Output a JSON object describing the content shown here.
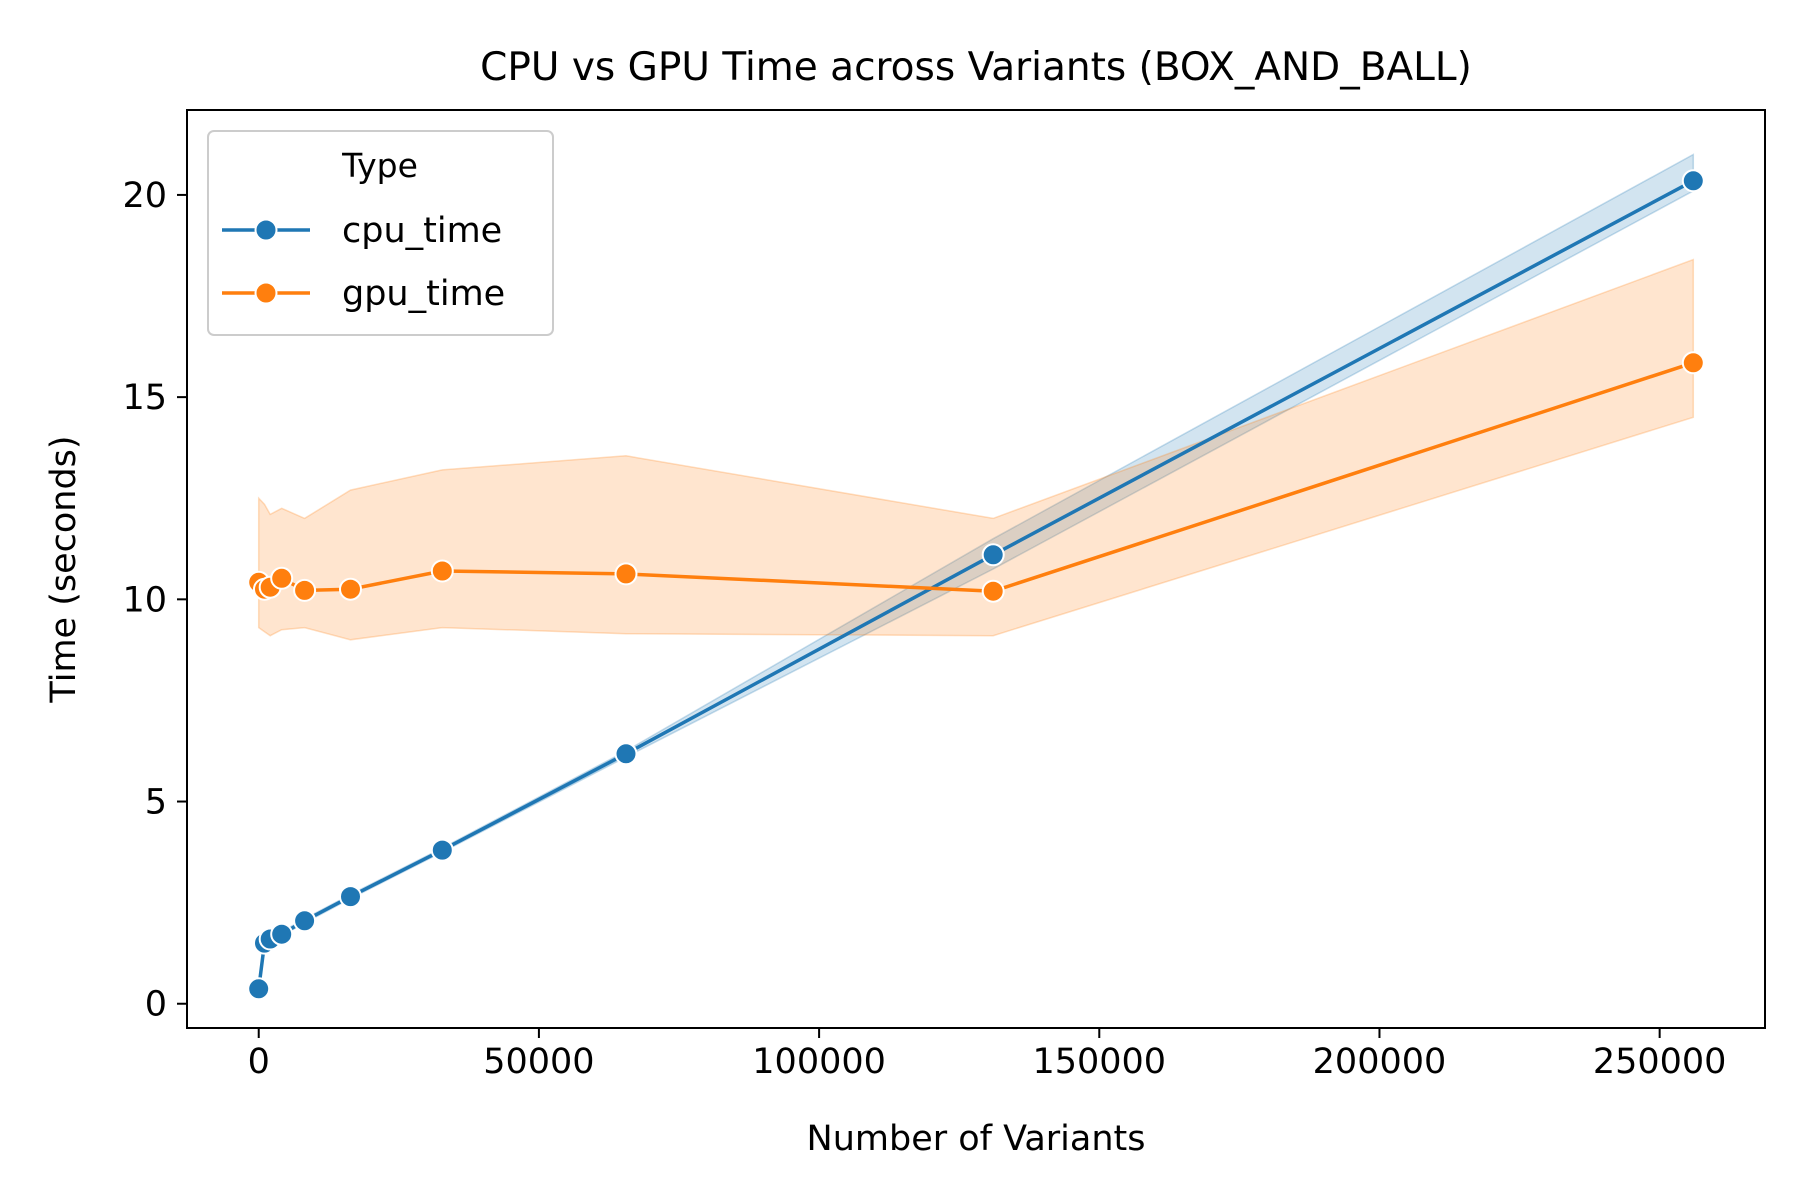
{
  "chart_data": {
    "type": "line",
    "title": "CPU vs GPU Time across Variants (BOX_AND_BALL)",
    "xlabel": "Number of Variants",
    "ylabel": "Time (seconds)",
    "xlim": [
      -12800,
      268800
    ],
    "ylim": [
      -0.6,
      22.1
    ],
    "xticks": [
      0,
      50000,
      100000,
      150000,
      200000,
      250000
    ],
    "xtick_labels": [
      "0",
      "50000",
      "100000",
      "150000",
      "200000",
      "250000"
    ],
    "yticks": [
      0,
      5,
      10,
      15,
      20
    ],
    "ytick_labels": [
      "0",
      "5",
      "10",
      "15",
      "20"
    ],
    "grid": false,
    "legend": {
      "title": "Type",
      "placement": "top-left"
    },
    "x": [
      1,
      1024,
      2048,
      4096,
      8192,
      16384,
      32768,
      65536,
      131072,
      256000
    ],
    "series": [
      {
        "name": "cpu_time",
        "color": "#1f77b4",
        "values": [
          0.37,
          1.5,
          1.6,
          1.72,
          2.05,
          2.65,
          3.8,
          6.18,
          11.1,
          20.35
        ],
        "ci_lower": [
          0.35,
          1.45,
          1.55,
          1.68,
          2.0,
          2.6,
          3.75,
          6.1,
          10.75,
          20.1
        ],
        "ci_upper": [
          0.4,
          1.55,
          1.65,
          1.78,
          2.1,
          2.7,
          3.85,
          6.25,
          11.5,
          21.0
        ]
      },
      {
        "name": "gpu_time",
        "color": "#ff7f0e",
        "values": [
          10.42,
          10.25,
          10.3,
          10.52,
          10.22,
          10.25,
          10.7,
          10.63,
          10.2,
          15.85
        ],
        "ci_lower": [
          9.3,
          9.2,
          9.1,
          9.25,
          9.3,
          9.0,
          9.3,
          9.15,
          9.1,
          14.5
        ],
        "ci_upper": [
          12.5,
          12.35,
          12.1,
          12.25,
          12.0,
          12.7,
          13.2,
          13.55,
          12.0,
          18.4
        ]
      }
    ]
  }
}
